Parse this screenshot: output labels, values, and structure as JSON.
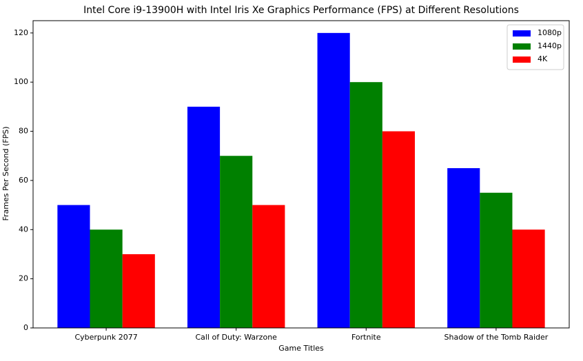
{
  "chart_data": {
    "type": "bar",
    "title": "Intel Core i9-13900H with Intel Iris Xe Graphics Performance (FPS) at Different Resolutions",
    "x_label": "Game Titles",
    "y_label": "Frames Per Second (FPS)",
    "categories": [
      "Cyberpunk 2077",
      "Call of Duty: Warzone",
      "Fortnite",
      "Shadow of the Tomb Raider"
    ],
    "series": [
      {
        "name": "1080p",
        "color": "#0000ff",
        "values": [
          50,
          90,
          120,
          65
        ]
      },
      {
        "name": "1440p",
        "color": "#008000",
        "values": [
          40,
          70,
          100,
          55
        ]
      },
      {
        "name": "4K",
        "color": "#ff0000",
        "values": [
          30,
          50,
          80,
          40
        ]
      }
    ],
    "ylim": [
      0,
      125
    ],
    "yticks": [
      0,
      20,
      40,
      60,
      80,
      100,
      120
    ],
    "legend": "upper right"
  }
}
